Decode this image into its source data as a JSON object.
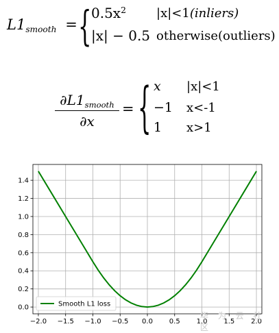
{
  "formula1": {
    "lhs_main": "L1",
    "lhs_sub": "smooth",
    "eq": "=",
    "case1_expr": "0.5x",
    "case1_exp": "2",
    "case1_cond_abs": "|x|<1",
    "case1_cond_word": "(inliers)",
    "case2_expr": "|x| − 0.5",
    "case2_cond": "otherwise(outliers)"
  },
  "formula2": {
    "num_main": "∂L1",
    "num_sub": "smooth",
    "den": "∂x",
    "eq": "=",
    "case1_expr": "x",
    "case1_cond": "|x|<1",
    "case2_expr": "−1",
    "case2_cond": "x<-1",
    "case3_expr": "1",
    "case3_cond": "x>1"
  },
  "watermark": "华 为 云 社 区",
  "chart_data": {
    "type": "line",
    "title": "",
    "xlabel": "",
    "ylabel": "",
    "xlim": [
      -2.1,
      2.1
    ],
    "ylim": [
      -0.075,
      1.575
    ],
    "x_ticks": [
      -2.0,
      -1.5,
      -1.0,
      -0.5,
      0.0,
      0.5,
      1.0,
      1.5,
      2.0
    ],
    "x_tick_labels": [
      "−2.0",
      "−1.5",
      "−1.0",
      "−0.5",
      "0.0",
      "0.5",
      "1.0",
      "1.5",
      "2.0"
    ],
    "y_ticks": [
      0.0,
      0.2,
      0.4,
      0.6,
      0.8,
      1.0,
      1.2,
      1.4
    ],
    "y_tick_labels": [
      "0.0",
      "0.2",
      "0.4",
      "0.6",
      "0.8",
      "1.0",
      "1.2",
      "1.4"
    ],
    "grid": true,
    "legend_position": "lower-left",
    "series": [
      {
        "name": "Smooth L1 loss",
        "color": "#008000",
        "x": [
          -2.0,
          -1.75,
          -1.5,
          -1.25,
          -1.0,
          -0.9,
          -0.8,
          -0.7,
          -0.6,
          -0.5,
          -0.4,
          -0.3,
          -0.2,
          -0.1,
          0.0,
          0.1,
          0.2,
          0.3,
          0.4,
          0.5,
          0.6,
          0.7,
          0.8,
          0.9,
          1.0,
          1.25,
          1.5,
          1.75,
          2.0
        ],
        "y": [
          1.5,
          1.25,
          1.0,
          0.75,
          0.5,
          0.405,
          0.32,
          0.245,
          0.18,
          0.125,
          0.08,
          0.045,
          0.02,
          0.005,
          0.0,
          0.005,
          0.02,
          0.045,
          0.08,
          0.125,
          0.18,
          0.245,
          0.32,
          0.405,
          0.5,
          0.75,
          1.0,
          1.25,
          1.5
        ]
      }
    ]
  }
}
